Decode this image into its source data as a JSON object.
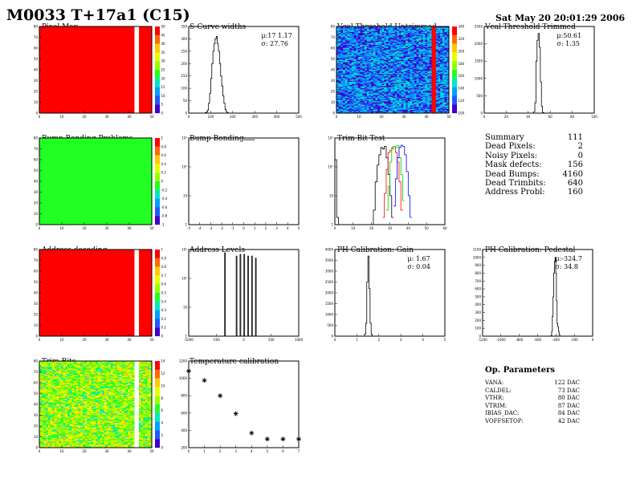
{
  "header": {
    "title": "M0033 T+17a1 (C15)",
    "date": "Sat May 20 20:01:29 2006"
  },
  "colors": {
    "black": "#000000",
    "red": "#ff0000",
    "green": "#00cc00",
    "blue": "#0000ff",
    "palette": [
      "#ff0000",
      "#ff6a00",
      "#ffc800",
      "#e8ff00",
      "#9aff00",
      "#22ff22",
      "#00e6c8",
      "#00a0ff",
      "#1e5aff",
      "#4000c8"
    ]
  },
  "chart_data": [
    {
      "id": "pixel-map",
      "type": "heatmap",
      "title": "Pixel Map",
      "nx": 52,
      "ny": 80,
      "xlim": [
        0,
        52
      ],
      "ylim": [
        0,
        80
      ],
      "fill": "uniform",
      "baseline_color_index": 0,
      "masked_columns": [
        44,
        45
      ],
      "xticks": [
        "0",
        "10",
        "20",
        "30",
        "40",
        "50"
      ],
      "yticks": [
        "0",
        "10",
        "20",
        "30",
        "40",
        "50",
        "60",
        "70",
        "80"
      ],
      "zticks": [
        "0",
        "5",
        "10",
        "15",
        "20",
        "25",
        "30",
        "35",
        "40",
        "45",
        "50"
      ]
    },
    {
      "id": "scurve-widths",
      "type": "bar",
      "title": "S-Curve widths",
      "xlim": [
        0,
        500
      ],
      "ylim": [
        0,
        350
      ],
      "bin_start": 0,
      "bin_width": 5,
      "values": [
        0,
        0,
        0,
        0,
        0,
        0,
        0,
        0,
        0,
        0,
        0,
        0,
        0,
        0,
        0,
        2,
        5,
        12,
        40,
        80,
        140,
        200,
        250,
        280,
        300,
        310,
        280,
        250,
        200,
        150,
        110,
        70,
        40,
        15,
        6,
        2,
        0,
        0,
        0,
        0
      ],
      "stats": [
        "μ:17 1.17",
        "σ: 27.76"
      ],
      "xticks": [
        "0",
        "100",
        "200",
        "300",
        "400",
        "500"
      ],
      "yticks": [
        "0",
        "50",
        "100",
        "150",
        "200",
        "250",
        "300",
        "350"
      ]
    },
    {
      "id": "vcal-untrimmed",
      "type": "heatmap",
      "title": "Vcal Threshold Untrimmed",
      "nx": 52,
      "ny": 80,
      "xlim": [
        0,
        52
      ],
      "ylim": [
        0,
        80
      ],
      "fill": "noise",
      "baseline_color_index": 8,
      "noise_indices": [
        6,
        7,
        8,
        9
      ],
      "hot_columns": [
        44,
        45
      ],
      "hot_color_index": 0,
      "xticks": [
        "0",
        "10",
        "20",
        "30",
        "40",
        "50"
      ],
      "yticks": [
        "0",
        "10",
        "20",
        "30",
        "40",
        "50",
        "60",
        "70",
        "80"
      ],
      "zticks": [
        "100",
        "120",
        "140",
        "160",
        "180",
        "200",
        "220",
        "240"
      ]
    },
    {
      "id": "vcal-trimmed",
      "type": "bar",
      "title": "Vcal Threshold Trimmed",
      "xlim": [
        0,
        100
      ],
      "ylim": [
        0,
        2500
      ],
      "bin_start": 44,
      "bin_width": 1,
      "values": [
        0,
        40,
        300,
        1500,
        2100,
        2300,
        1900,
        900,
        200,
        20,
        0
      ],
      "stats": [
        "μ:50.61",
        "σ: 1.35"
      ],
      "xticks": [
        "0",
        "20",
        "40",
        "60",
        "80",
        "100"
      ],
      "yticks": [
        "0",
        "500",
        "1000",
        "1500",
        "2000",
        "2500"
      ]
    },
    {
      "id": "bump-bonding-problems",
      "type": "heatmap",
      "title": "Bump Bonding Problems",
      "nx": 52,
      "ny": 80,
      "xlim": [
        0,
        52
      ],
      "ylim": [
        0,
        80
      ],
      "fill": "uniform",
      "baseline_color_index": 5,
      "xticks": [
        "0",
        "10",
        "20",
        "30",
        "40",
        "50"
      ],
      "yticks": [
        "0",
        "10",
        "20",
        "30",
        "40",
        "50",
        "60",
        "70",
        "80"
      ],
      "zticks": [
        "-1",
        "-0.8",
        "-0.6",
        "-0.4",
        "-0.2",
        "0",
        "0.2",
        "0.4",
        "0.6",
        "0.8",
        "1"
      ]
    },
    {
      "id": "bump-bonding",
      "type": "bar",
      "title": "Bump Bonding",
      "xlim": [
        -5,
        5
      ],
      "yscale": "log",
      "ylim": [
        0.5,
        5000
      ],
      "bin_start": 0,
      "bin_width": 1,
      "values": [
        4160
      ],
      "xticks": [
        "-5",
        "-4",
        "-3",
        "-2",
        "-1",
        "0",
        "1",
        "2",
        "3",
        "4",
        "5"
      ],
      "yticks": [
        "1",
        "10",
        "10²",
        "10³"
      ]
    },
    {
      "id": "trim-bit-test",
      "type": "line",
      "title": "Trim Bit Test",
      "xlim": [
        0,
        60
      ],
      "yscale": "log",
      "ylim": [
        0.5,
        2000
      ],
      "bin_width": 1,
      "series": [
        {
          "color": "#000000",
          "bin_start": 0,
          "values": [
            250,
            1,
            0,
            0,
            0,
            0,
            0,
            0,
            0,
            0,
            0,
            0,
            0,
            0,
            0,
            0,
            0,
            0,
            0,
            0,
            0,
            2,
            30,
            150,
            400,
            800,
            700,
            900,
            300,
            60,
            8,
            1
          ]
        },
        {
          "color": "#ff0000",
          "bin_start": 26,
          "values": [
            1,
            10,
            100,
            500,
            600,
            800,
            900,
            500,
            200,
            30,
            2
          ]
        },
        {
          "color": "#00cc00",
          "bin_start": 28,
          "values": [
            2,
            20,
            200,
            700,
            900,
            800,
            950,
            300,
            60,
            5
          ]
        },
        {
          "color": "#0000ff",
          "bin_start": 32,
          "values": [
            3,
            40,
            300,
            800,
            1000,
            900,
            400,
            80,
            8,
            1
          ]
        }
      ],
      "xticks": [
        "0",
        "10",
        "20",
        "30",
        "40",
        "50",
        "60"
      ],
      "yticks": [
        "1",
        "10",
        "10²",
        "10³"
      ]
    },
    {
      "id": "address-decoding",
      "type": "heatmap",
      "title": "Address decoding",
      "nx": 52,
      "ny": 80,
      "xlim": [
        0,
        52
      ],
      "ylim": [
        0,
        80
      ],
      "fill": "uniform",
      "baseline_color_index": 0,
      "masked_columns": [
        44,
        45
      ],
      "xticks": [
        "0",
        "10",
        "20",
        "30",
        "40",
        "50"
      ],
      "yticks": [
        "0",
        "10",
        "20",
        "30",
        "40",
        "50",
        "60",
        "70",
        "80"
      ],
      "zticks": [
        "0",
        "0.1",
        "0.2",
        "0.3",
        "0.4",
        "0.5",
        "0.6",
        "0.7",
        "0.8",
        "0.9",
        "1"
      ]
    },
    {
      "id": "address-levels",
      "type": "bar",
      "title": "Address Levels",
      "xlim": [
        -1000,
        1000
      ],
      "yscale": "log",
      "ylim": [
        0.5,
        5000
      ],
      "bins": [
        [
          -340,
          3500
        ],
        [
          -130,
          2500
        ],
        [
          -60,
          3000
        ],
        [
          10,
          3000
        ],
        [
          80,
          2500
        ],
        [
          150,
          2500
        ],
        [
          220,
          2000
        ]
      ],
      "bin_width": 14,
      "xticks": [
        "-1000",
        "-500",
        "0",
        "500",
        "1000"
      ],
      "yticks": [
        "1",
        "10",
        "10²",
        "10³"
      ]
    },
    {
      "id": "ph-gain",
      "type": "bar",
      "title": "PH Calibration: Gain",
      "xlim": [
        0,
        5
      ],
      "ylim": [
        0,
        4000
      ],
      "bin_start": 1.3,
      "bin_width": 0.05,
      "values": [
        0,
        100,
        600,
        2500,
        3700,
        2200,
        600,
        80,
        0
      ],
      "stats": [
        "μ: 1.67",
        "σ: 0.04"
      ],
      "xticks": [
        "0",
        "1",
        "2",
        "3",
        "4",
        "5"
      ],
      "yticks": [
        "0",
        "500",
        "1000",
        "1500",
        "2000",
        "2500",
        "3000",
        "3500",
        "4000"
      ]
    },
    {
      "id": "ph-pedestal",
      "type": "bar",
      "title": "PH Calibration: Pedestal",
      "xlim": [
        -1200,
        100
      ],
      "ylim": [
        0,
        1100
      ],
      "bin_start": -400,
      "bin_width": 8,
      "values": [
        0,
        10,
        60,
        250,
        500,
        800,
        950,
        1000,
        800,
        450,
        160,
        120,
        60,
        20,
        0
      ],
      "stats": [
        "μ:-324.7",
        "σ: 34.8"
      ],
      "xticks": [
        "-1200",
        "-1000",
        "-800",
        "-600",
        "-400",
        "-200",
        "0"
      ],
      "yticks": [
        "0",
        "100",
        "200",
        "300",
        "400",
        "500",
        "600",
        "700",
        "800",
        "900",
        "1000",
        "1100"
      ]
    },
    {
      "id": "trim-bits",
      "type": "heatmap",
      "title": "Trim Bits",
      "nx": 52,
      "ny": 80,
      "xlim": [
        0,
        52
      ],
      "ylim": [
        0,
        80
      ],
      "fill": "noise",
      "baseline_color_index": 4,
      "noise_indices": [
        2,
        3,
        4,
        5,
        5,
        6,
        4,
        3
      ],
      "masked_columns": [
        44,
        45
      ],
      "xticks": [
        "0",
        "10",
        "20",
        "30",
        "40",
        "50"
      ],
      "yticks": [
        "0",
        "10",
        "20",
        "30",
        "40",
        "50",
        "60",
        "70",
        "80"
      ],
      "zticks": [
        "0",
        "2",
        "4",
        "6",
        "8",
        "10",
        "12",
        "14"
      ]
    },
    {
      "id": "temperature-calibration",
      "type": "scatter",
      "title": "Temperature calibration",
      "xlim": [
        0,
        7
      ],
      "ylim": [
        0,
        1300
      ],
      "x": [
        0,
        1,
        2,
        3,
        4,
        5,
        6,
        7
      ],
      "y": [
        1150,
        1010,
        780,
        510,
        220,
        130,
        130,
        130
      ],
      "xticks": [
        "0",
        "1",
        "2",
        "3",
        "4",
        "5",
        "6",
        "7"
      ],
      "yticks": [
        "200",
        "400",
        "600",
        "800",
        "1000",
        "1200"
      ]
    }
  ],
  "summary": {
    "rows": [
      {
        "label": "Summary",
        "value": "111"
      },
      {
        "label": "Dead Pixels:",
        "value": "2"
      },
      {
        "label": "Noisy Pixels:",
        "value": "0"
      },
      {
        "label": "Mask defects:",
        "value": "156"
      },
      {
        "label": "Dead Bumps:",
        "value": "4160"
      },
      {
        "label": "Dead Trimbits:",
        "value": "640"
      },
      {
        "label": "Address Probl:",
        "value": "160"
      }
    ]
  },
  "op_parameters": {
    "title": "Op. Parameters",
    "rows": [
      {
        "label": "VANA:",
        "value": "122 DAC"
      },
      {
        "label": "CALDEL:",
        "value": "73 DAC"
      },
      {
        "label": "VTHR:",
        "value": "80 DAC"
      },
      {
        "label": "VTRIM:",
        "value": "87 DAC"
      },
      {
        "label": "IBIAS_DAC:",
        "value": "84 DAC"
      },
      {
        "label": "VOFFSETOP:",
        "value": "42 DAC"
      }
    ]
  }
}
